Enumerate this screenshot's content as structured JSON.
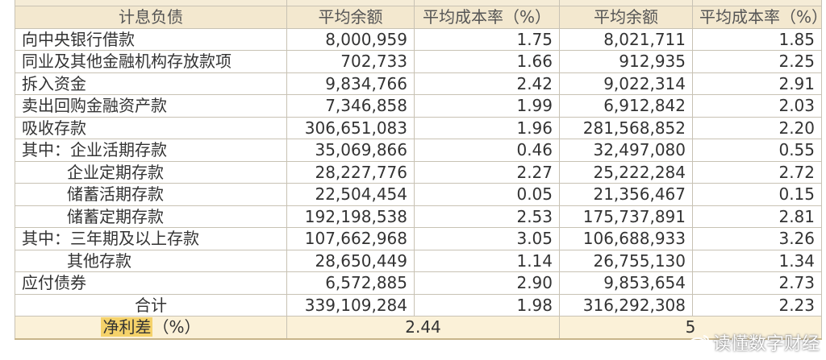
{
  "table": {
    "header": {
      "item": "计息负债",
      "avg_balance_1": "平均余额",
      "avg_cost_1": "平均成本率（%）",
      "avg_balance_2": "平均余额",
      "avg_cost_2": "平均成本率（%）"
    },
    "rows": [
      {
        "name": "向中央银行借款",
        "bal1": "8,000,959",
        "rate1": "1.75",
        "bal2": "8,021,711",
        "rate2": "1.85"
      },
      {
        "name": "同业及其他金融机构存放款项",
        "bal1": "702,733",
        "rate1": "1.66",
        "bal2": "912,935",
        "rate2": "2.25"
      },
      {
        "name": "拆入资金",
        "bal1": "9,834,766",
        "rate1": "2.42",
        "bal2": "9,022,314",
        "rate2": "2.91"
      },
      {
        "name": "卖出回购金融资产款",
        "bal1": "7,346,858",
        "rate1": "1.99",
        "bal2": "6,912,842",
        "rate2": "2.03"
      },
      {
        "name": "吸收存款",
        "bal1": "306,651,083",
        "rate1": "1.96",
        "bal2": "281,568,852",
        "rate2": "2.20"
      },
      {
        "name": "其中：企业活期存款",
        "bal1": "35,069,866",
        "rate1": "0.46",
        "bal2": "32,497,080",
        "rate2": "0.55"
      },
      {
        "name": "企业定期存款",
        "bal1": "28,227,776",
        "rate1": "2.27",
        "bal2": "25,222,284",
        "rate2": "2.72"
      },
      {
        "name": "储蓄活期存款",
        "bal1": "22,504,454",
        "rate1": "0.05",
        "bal2": "21,356,467",
        "rate2": "0.15"
      },
      {
        "name": "储蓄定期存款",
        "bal1": "192,198,538",
        "rate1": "2.53",
        "bal2": "175,737,891",
        "rate2": "2.81"
      },
      {
        "name": "其中：三年期及以上存款",
        "bal1": "107,662,968",
        "rate1": "3.05",
        "bal2": "106,688,933",
        "rate2": "3.26"
      },
      {
        "name": "其他存款",
        "bal1": "28,650,449",
        "rate1": "1.14",
        "bal2": "26,755,130",
        "rate2": "1.34"
      },
      {
        "name": "应付债券",
        "bal1": "6,572,885",
        "rate1": "2.90",
        "bal2": "9,853,654",
        "rate2": "2.73"
      }
    ],
    "total": {
      "name": "合计",
      "bal1": "339,109,284",
      "rate1": "1.98",
      "bal2": "316,292,308",
      "rate2": "2.23"
    },
    "nim": {
      "label_highlight": "净利差",
      "label_unit": "（%）",
      "value1": "2.44",
      "value2": "5"
    }
  },
  "watermark": {
    "text": "读懂数字财经"
  },
  "colors": {
    "header_bg": "#f3e8cf",
    "border": "#c8c2b4",
    "highlight": "#f5d26a"
  }
}
